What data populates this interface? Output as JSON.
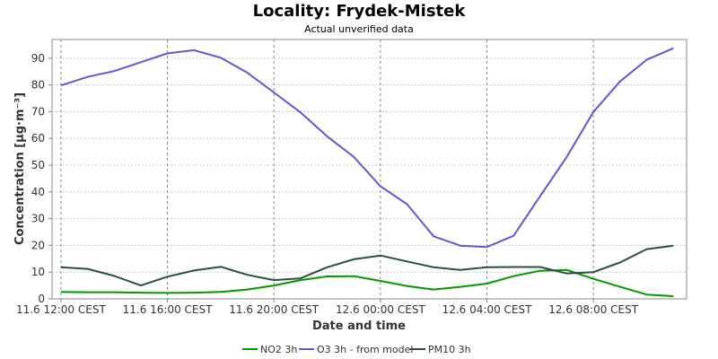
{
  "title": "Locality: Frydek-Mistek",
  "subtitle": "Actual unverified data",
  "chart_data": {
    "type": "line",
    "title": "Locality: Frydek-Mistek",
    "subtitle": "Actual unverified data",
    "xlabel": "Date and time",
    "ylabel": "Concentration [µg·m⁻³]",
    "ylim": [
      0,
      97
    ],
    "yticks": [
      0,
      10,
      20,
      30,
      40,
      50,
      60,
      70,
      80,
      90
    ],
    "x": [
      "11.6 12:00",
      "11.6 13:00",
      "11.6 14:00",
      "11.6 15:00",
      "11.6 16:00",
      "11.6 17:00",
      "11.6 18:00",
      "11.6 19:00",
      "11.6 20:00",
      "11.6 21:00",
      "11.6 22:00",
      "11.6 23:00",
      "12.6 00:00",
      "12.6 01:00",
      "12.6 02:00",
      "12.6 03:00",
      "12.6 04:00",
      "12.6 05:00",
      "12.6 06:00",
      "12.6 07:00",
      "12.6 08:00",
      "12.6 09:00",
      "12.6 10:00",
      "12.6 11:00"
    ],
    "xlim": [
      "11.6 11:40",
      "12.6 11:30"
    ],
    "xticks": [
      "11.6 12:00 CEST",
      "11.6 16:00 CEST",
      "11.6 20:00 CEST",
      "12.6 00:00 CEST",
      "12.6 04:00 CEST",
      "12.6 08:00 CEST"
    ],
    "grid": true,
    "legend_position": "bottom",
    "series": [
      {
        "name": "NO2 3h",
        "color": "#009900",
        "values": [
          2.6,
          2.5,
          2.5,
          2.3,
          2.2,
          2.3,
          2.6,
          3.5,
          5.0,
          7.0,
          8.4,
          8.5,
          6.7,
          4.8,
          3.5,
          4.5,
          5.7,
          8.5,
          10.5,
          10.8,
          7.5,
          4.5,
          1.6,
          1.0
        ]
      },
      {
        "name": "O3 3h - from model",
        "color": "#6655cc",
        "values": [
          79.8,
          83.0,
          85.2,
          88.5,
          91.8,
          93.0,
          90.2,
          84.6,
          77.2,
          69.7,
          60.8,
          53.1,
          42.1,
          35.4,
          23.4,
          19.9,
          19.4,
          23.6,
          38.4,
          53.1,
          69.9,
          81.3,
          89.4,
          93.7
        ]
      },
      {
        "name": "PM10 3h",
        "color": "#2a4e43",
        "values": [
          11.8,
          11.2,
          8.6,
          5.0,
          8.3,
          10.6,
          12.0,
          9.0,
          7.0,
          7.7,
          11.8,
          14.8,
          16.2,
          14.0,
          11.8,
          10.8,
          11.8,
          11.9,
          11.9,
          9.5,
          10.0,
          13.6,
          18.6,
          19.9
        ]
      }
    ]
  }
}
